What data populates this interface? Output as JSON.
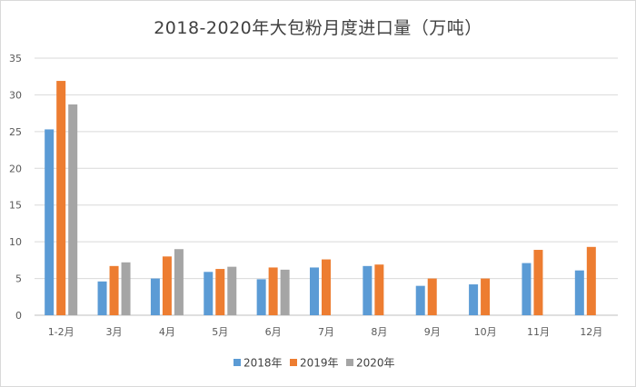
{
  "chart_data": {
    "type": "bar",
    "title": "2018-2020年大包粉月度进口量（万吨）",
    "xlabel": "",
    "ylabel": "",
    "categories": [
      "1-2月",
      "3月",
      "4月",
      "5月",
      "6月",
      "7月",
      "8月",
      "9月",
      "10月",
      "11月",
      "12月"
    ],
    "series": [
      {
        "name": "2018年",
        "color": "#5b9bd5",
        "values": [
          25.3,
          4.6,
          5.0,
          5.9,
          4.9,
          6.5,
          6.7,
          4.0,
          4.2,
          7.1,
          6.1
        ]
      },
      {
        "name": "2019年",
        "color": "#ed7d31",
        "values": [
          31.9,
          6.7,
          8.0,
          6.3,
          6.5,
          7.6,
          6.9,
          5.0,
          5.0,
          8.9,
          9.3
        ]
      },
      {
        "name": "2020年",
        "color": "#a5a5a5",
        "values": [
          28.7,
          7.2,
          9.0,
          6.6,
          6.2,
          null,
          null,
          null,
          null,
          null,
          null
        ]
      }
    ],
    "ylim": [
      0,
      35
    ],
    "yticks": [
      0,
      5,
      10,
      15,
      20,
      25,
      30,
      35
    ],
    "grid": true,
    "legend": "bottom"
  }
}
